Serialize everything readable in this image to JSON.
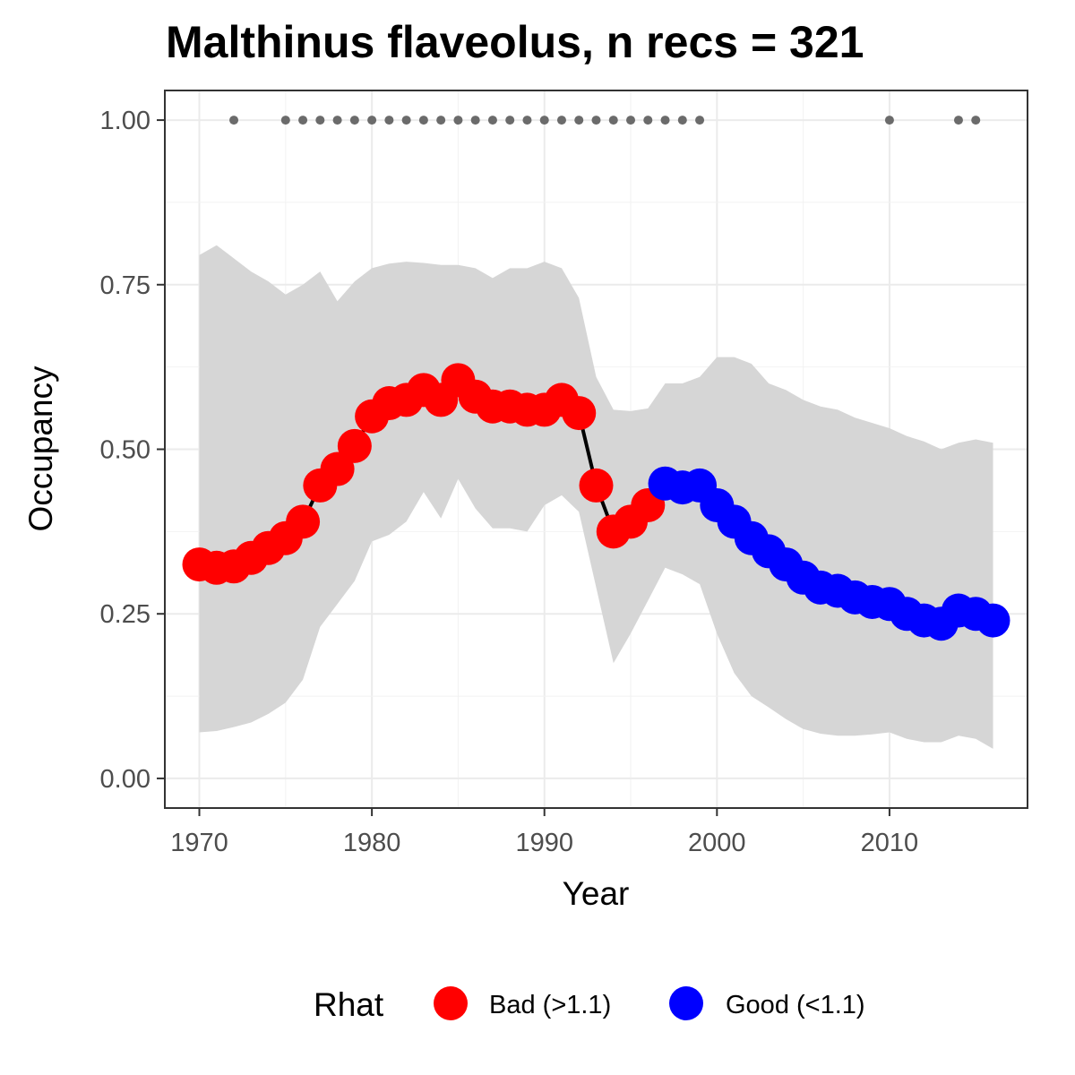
{
  "chart_data": {
    "type": "line",
    "title": "Malthinus flaveolus, n recs = 321",
    "xlabel": "Year",
    "ylabel": "Occupancy",
    "xlim": [
      1968,
      2018
    ],
    "ylim": [
      -0.045,
      1.045
    ],
    "x_ticks": [
      1970,
      1980,
      1990,
      2000,
      2010
    ],
    "x_tick_labels": [
      "1970",
      "1980",
      "1990",
      "2000",
      "2010"
    ],
    "y_ticks": [
      0,
      0.25,
      0.5,
      0.75,
      1
    ],
    "y_tick_labels": [
      "0.00",
      "0.25",
      "0.50",
      "0.75",
      "1.00"
    ],
    "grid": true,
    "legend": {
      "title": "Rhat",
      "position": "bottom",
      "entries": [
        {
          "label": "Bad (>1.1)",
          "color": "#ff0000"
        },
        {
          "label": "Good (<1.1)",
          "color": "#0000ff"
        }
      ]
    },
    "colors": {
      "bad": "#ff0000",
      "good": "#0000ff",
      "ribbon": "#d6d6d6",
      "line": "#000000",
      "record_points": "#6b6b6b"
    },
    "series": {
      "x": [
        1970,
        1971,
        1972,
        1973,
        1974,
        1975,
        1976,
        1977,
        1978,
        1979,
        1980,
        1981,
        1982,
        1983,
        1984,
        1985,
        1986,
        1987,
        1988,
        1989,
        1990,
        1991,
        1992,
        1993,
        1994,
        1995,
        1996,
        1997,
        1998,
        1999,
        2000,
        2001,
        2002,
        2003,
        2004,
        2005,
        2006,
        2007,
        2008,
        2009,
        2010,
        2011,
        2012,
        2013,
        2014,
        2015,
        2016
      ],
      "occupancy": [
        0.325,
        0.32,
        0.322,
        0.335,
        0.35,
        0.365,
        0.39,
        0.445,
        0.47,
        0.505,
        0.55,
        0.57,
        0.575,
        0.59,
        0.575,
        0.605,
        0.58,
        0.565,
        0.565,
        0.56,
        0.56,
        0.575,
        0.555,
        0.445,
        0.375,
        0.39,
        0.415,
        0.448,
        0.442,
        0.445,
        0.415,
        0.39,
        0.365,
        0.345,
        0.325,
        0.305,
        0.29,
        0.285,
        0.275,
        0.268,
        0.265,
        0.25,
        0.24,
        0.235,
        0.255,
        0.25,
        0.24
      ],
      "lower": [
        0.07,
        0.072,
        0.078,
        0.085,
        0.098,
        0.115,
        0.15,
        0.23,
        0.265,
        0.3,
        0.36,
        0.37,
        0.39,
        0.435,
        0.395,
        0.455,
        0.41,
        0.38,
        0.38,
        0.375,
        0.415,
        0.43,
        0.405,
        0.29,
        0.175,
        0.22,
        0.27,
        0.32,
        0.31,
        0.295,
        0.22,
        0.16,
        0.125,
        0.108,
        0.09,
        0.075,
        0.068,
        0.065,
        0.065,
        0.067,
        0.07,
        0.06,
        0.055,
        0.055,
        0.065,
        0.06,
        0.045
      ],
      "upper": [
        0.795,
        0.81,
        0.79,
        0.77,
        0.755,
        0.735,
        0.75,
        0.77,
        0.725,
        0.755,
        0.775,
        0.782,
        0.785,
        0.783,
        0.78,
        0.78,
        0.775,
        0.76,
        0.775,
        0.775,
        0.785,
        0.775,
        0.73,
        0.61,
        0.56,
        0.558,
        0.562,
        0.6,
        0.6,
        0.61,
        0.64,
        0.64,
        0.63,
        0.6,
        0.59,
        0.575,
        0.565,
        0.56,
        0.548,
        0.54,
        0.532,
        0.52,
        0.512,
        0.5,
        0.51,
        0.515,
        0.51
      ],
      "rhat": [
        "Bad",
        "Bad",
        "Bad",
        "Bad",
        "Bad",
        "Bad",
        "Bad",
        "Bad",
        "Bad",
        "Bad",
        "Bad",
        "Bad",
        "Bad",
        "Bad",
        "Bad",
        "Bad",
        "Bad",
        "Bad",
        "Bad",
        "Bad",
        "Bad",
        "Bad",
        "Bad",
        "Bad",
        "Bad",
        "Bad",
        "Bad",
        "Good",
        "Good",
        "Good",
        "Good",
        "Good",
        "Good",
        "Good",
        "Good",
        "Good",
        "Good",
        "Good",
        "Good",
        "Good",
        "Good",
        "Good",
        "Good",
        "Good",
        "Good",
        "Good",
        "Good"
      ]
    },
    "record_years": [
      1972,
      1975,
      1976,
      1977,
      1978,
      1979,
      1980,
      1981,
      1982,
      1983,
      1984,
      1985,
      1986,
      1987,
      1988,
      1989,
      1990,
      1991,
      1992,
      1993,
      1994,
      1995,
      1996,
      1997,
      1998,
      1999,
      2010,
      2014,
      2015
    ],
    "record_value": 1.0
  }
}
